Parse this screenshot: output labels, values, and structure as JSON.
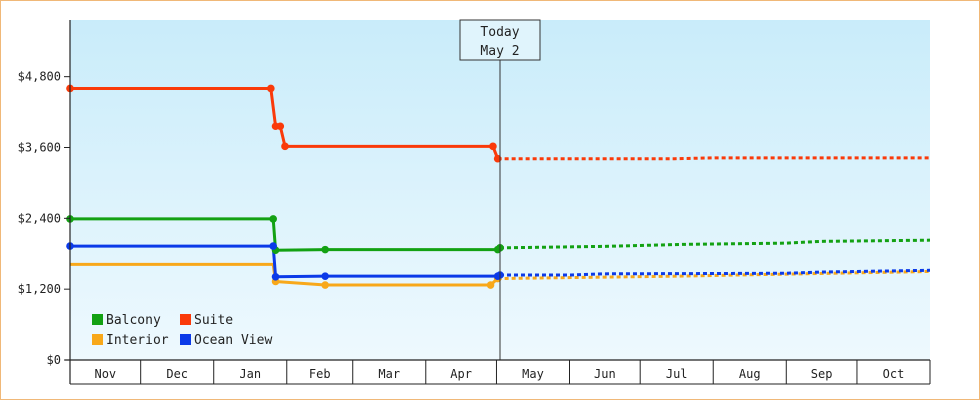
{
  "chart_data": {
    "type": "line",
    "title": "",
    "xlabel": "",
    "ylabel": "",
    "ylim": [
      0,
      5760
    ],
    "y_ticks": [
      0,
      1200,
      2400,
      3600,
      4800
    ],
    "y_tick_labels": [
      "$0",
      "$1,200",
      "$2,400",
      "$3,600",
      "$4,800"
    ],
    "x_range": [
      "2024-11-01",
      "2025-10-31"
    ],
    "x_tick_labels": [
      "Nov",
      "Dec",
      "Jan",
      "Feb",
      "Mar",
      "Apr",
      "May",
      "Jun",
      "Jul",
      "Aug",
      "Sep",
      "Oct"
    ],
    "grid": false,
    "legend_position": "bottom-left",
    "today": {
      "label": "Today",
      "date_label": "May 2",
      "date": "2025-05-02"
    },
    "series": [
      {
        "name": "Balcony",
        "color": "#13a113",
        "points": [
          {
            "date": "2024-11-01",
            "value": 2390,
            "marker": true
          },
          {
            "date": "2025-01-26",
            "value": 2390,
            "marker": true
          },
          {
            "date": "2025-01-27",
            "value": 1860,
            "marker": true
          },
          {
            "date": "2025-02-17",
            "value": 1870,
            "marker": true
          },
          {
            "date": "2025-05-01",
            "value": 1870,
            "marker": true
          },
          {
            "date": "2025-05-02",
            "value": 1900,
            "marker": true
          }
        ],
        "forecast": [
          {
            "date": "2025-05-02",
            "value": 1900
          },
          {
            "date": "2025-06-15",
            "value": 1925
          },
          {
            "date": "2025-07-20",
            "value": 1960
          },
          {
            "date": "2025-08-31",
            "value": 1980
          },
          {
            "date": "2025-09-15",
            "value": 2010
          },
          {
            "date": "2025-10-31",
            "value": 2030
          }
        ]
      },
      {
        "name": "Suite",
        "color": "#fa3a0a",
        "points": [
          {
            "date": "2024-11-01",
            "value": 4600,
            "marker": true
          },
          {
            "date": "2025-01-25",
            "value": 4600,
            "marker": true
          },
          {
            "date": "2025-01-27",
            "value": 3960,
            "marker": true
          },
          {
            "date": "2025-01-29",
            "value": 3960,
            "marker": true
          },
          {
            "date": "2025-01-31",
            "value": 3620,
            "marker": true
          },
          {
            "date": "2025-04-29",
            "value": 3620,
            "marker": true
          },
          {
            "date": "2025-05-01",
            "value": 3410,
            "marker": true
          }
        ],
        "forecast": [
          {
            "date": "2025-05-01",
            "value": 3410
          },
          {
            "date": "2025-07-15",
            "value": 3410
          },
          {
            "date": "2025-08-01",
            "value": 3425
          },
          {
            "date": "2025-10-31",
            "value": 3425
          }
        ]
      },
      {
        "name": "Interior",
        "color": "#f8a81a",
        "points": [
          {
            "date": "2024-11-01",
            "value": 1620
          },
          {
            "date": "2025-01-26",
            "value": 1620
          },
          {
            "date": "2025-01-27",
            "value": 1330,
            "marker": true
          },
          {
            "date": "2025-02-17",
            "value": 1270,
            "marker": true
          },
          {
            "date": "2025-04-28",
            "value": 1270,
            "marker": true
          },
          {
            "date": "2025-05-01",
            "value": 1380,
            "marker": true
          }
        ],
        "forecast": [
          {
            "date": "2025-05-01",
            "value": 1380
          },
          {
            "date": "2025-07-15",
            "value": 1420
          },
          {
            "date": "2025-10-31",
            "value": 1500
          }
        ]
      },
      {
        "name": "Ocean View",
        "color": "#0b3ae8",
        "points": [
          {
            "date": "2024-11-01",
            "value": 1930,
            "marker": true
          },
          {
            "date": "2025-01-26",
            "value": 1930,
            "marker": true
          },
          {
            "date": "2025-01-27",
            "value": 1410,
            "marker": true
          },
          {
            "date": "2025-02-17",
            "value": 1420,
            "marker": true
          },
          {
            "date": "2025-05-01",
            "value": 1420,
            "marker": true
          },
          {
            "date": "2025-05-02",
            "value": 1440,
            "marker": true
          }
        ],
        "forecast": [
          {
            "date": "2025-05-02",
            "value": 1440
          },
          {
            "date": "2025-06-01",
            "value": 1440
          },
          {
            "date": "2025-06-15",
            "value": 1460
          },
          {
            "date": "2025-07-31",
            "value": 1465
          },
          {
            "date": "2025-08-31",
            "value": 1470
          },
          {
            "date": "2025-09-15",
            "value": 1490
          },
          {
            "date": "2025-10-31",
            "value": 1520
          }
        ]
      }
    ]
  },
  "legend_order": [
    "Balcony",
    "Suite",
    "Interior",
    "Ocean View"
  ]
}
